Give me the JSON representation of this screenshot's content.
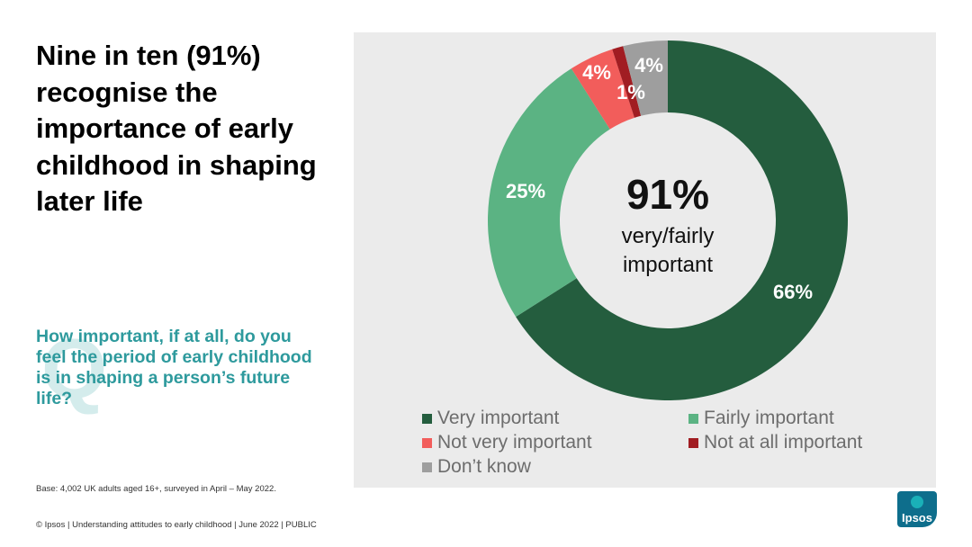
{
  "headline": "Nine in ten (91%) recognise the importance of early childhood in shaping later life",
  "question": "How important, if at all, do you feel the period of early childhood is in shaping a person’s future life?",
  "question_mark": "Q",
  "base_note": "Base: 4,002 UK adults aged 16+, surveyed in April – May 2022.",
  "footer": "© Ipsos | Understanding attitudes to early childhood | June 2022 | PUBLIC",
  "logo_text": "Ipsos",
  "colors": {
    "very_important": "#245d3e",
    "fairly_important": "#5bb383",
    "not_very_important": "#f25d5b",
    "not_at_all_important": "#a11d22",
    "dont_know": "#9e9e9e",
    "panel": "#ebebeb",
    "accent_teal": "#2e9a9d"
  },
  "chart_data": {
    "type": "donut",
    "series": [
      {
        "label": "Very important",
        "value": 66,
        "display": "66%",
        "color": "#245d3e"
      },
      {
        "label": "Fairly important",
        "value": 25,
        "display": "25%",
        "color": "#5bb383"
      },
      {
        "label": "Not very important",
        "value": 4,
        "display": "4%",
        "color": "#f25d5b"
      },
      {
        "label": "Not at all important",
        "value": 1,
        "display": "1%",
        "color": "#a11d22"
      },
      {
        "label": "Don’t know",
        "value": 4,
        "display": "4%",
        "color": "#9e9e9e"
      }
    ],
    "center_value": "91%",
    "center_label_line1": "very/fairly",
    "center_label_line2": "important",
    "legend_placement": "bottom"
  }
}
